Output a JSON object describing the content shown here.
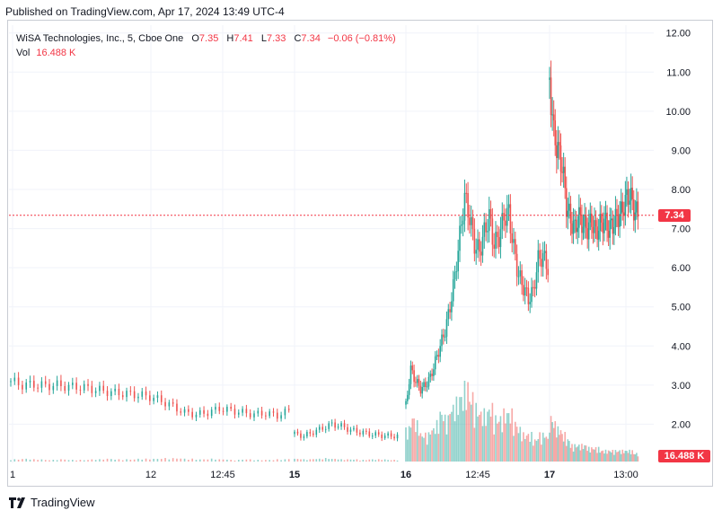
{
  "published": "Published on TradingView.com, Apr 17, 2024 13:49 UTC-4",
  "legend": {
    "symbol": "WiSA Technologies, Inc., 5, Cboe One",
    "open_label": "O",
    "open": "7.35",
    "high_label": "H",
    "high": "7.41",
    "low_label": "L",
    "low": "7.33",
    "close_label": "C",
    "close": "7.34",
    "change": "−0.06 (−0.81%)",
    "vol_label": "Vol",
    "vol": "16.488 K"
  },
  "last_price_label": "7.34",
  "last_volume_label": "16.488 K",
  "footer": {
    "brand": "TradingView"
  },
  "colors": {
    "up": "#26a69a",
    "down": "#ef5350",
    "price_line": "#f23645",
    "grid": "#f0f3fa",
    "axis_text": "#131722"
  },
  "chart_data": {
    "type": "candlestick",
    "y_ticks": [
      "2.00",
      "3.00",
      "4.00",
      "5.00",
      "6.00",
      "7.00",
      "8.00",
      "9.00",
      "10.00",
      "11.00",
      "12.00"
    ],
    "x_ticks": [
      {
        "label": "1",
        "bold": false
      },
      {
        "label": "12",
        "bold": false
      },
      {
        "label": "12:45",
        "bold": false
      },
      {
        "label": "15",
        "bold": true
      },
      {
        "label": "16",
        "bold": true
      },
      {
        "label": "12:45",
        "bold": false
      },
      {
        "label": "17",
        "bold": true
      },
      {
        "label": "13:00",
        "bold": false
      }
    ],
    "ylim": [
      1.0,
      12.2
    ],
    "last_price": 7.34,
    "grid": true,
    "segments": [
      {
        "session": "Apr 12",
        "path": [
          [
            3.1,
            0.4
          ],
          [
            3.0,
            0.5
          ],
          [
            3.02,
            0.4
          ],
          [
            2.98,
            0.3
          ],
          [
            3.0,
            0.4
          ],
          [
            2.96,
            0.3
          ],
          [
            2.95,
            0.3
          ],
          [
            2.9,
            0.4
          ],
          [
            2.85,
            0.5
          ],
          [
            2.8,
            0.4
          ],
          [
            2.78,
            0.4
          ],
          [
            2.75,
            0.5
          ],
          [
            2.7,
            0.5
          ],
          [
            2.6,
            0.6
          ],
          [
            2.45,
            0.6
          ],
          [
            2.3,
            0.5
          ],
          [
            2.25,
            0.4
          ],
          [
            2.3,
            0.5
          ],
          [
            2.4,
            0.4
          ],
          [
            2.35,
            0.3
          ],
          [
            2.3,
            0.4
          ],
          [
            2.25,
            0.3
          ],
          [
            2.28,
            0.3
          ],
          [
            2.22,
            0.4
          ],
          [
            2.35,
            0.5
          ]
        ]
      },
      {
        "session": "Apr 15",
        "path": [
          [
            1.75,
            0.5
          ],
          [
            1.7,
            0.4
          ],
          [
            1.8,
            0.5
          ],
          [
            1.9,
            0.6
          ],
          [
            2.0,
            0.5
          ],
          [
            1.95,
            0.4
          ],
          [
            1.85,
            0.4
          ],
          [
            1.8,
            0.3
          ],
          [
            1.75,
            0.4
          ],
          [
            1.72,
            0.4
          ],
          [
            1.7,
            0.3
          ],
          [
            1.7,
            0.3
          ]
        ]
      },
      {
        "session": "Apr 16",
        "path": [
          [
            2.5,
            6
          ],
          [
            3.4,
            8
          ],
          [
            3.1,
            7
          ],
          [
            2.9,
            5
          ],
          [
            3.0,
            5
          ],
          [
            3.2,
            6
          ],
          [
            3.6,
            7
          ],
          [
            4.0,
            9
          ],
          [
            4.4,
            8
          ],
          [
            5.0,
            10
          ],
          [
            5.8,
            11
          ],
          [
            6.8,
            12
          ],
          [
            7.8,
            14
          ],
          [
            7.3,
            12
          ],
          [
            6.6,
            10
          ],
          [
            6.4,
            9
          ],
          [
            6.9,
            9
          ],
          [
            7.3,
            10
          ],
          [
            6.6,
            8
          ],
          [
            6.8,
            8
          ],
          [
            7.3,
            9
          ],
          [
            7.4,
            9
          ],
          [
            6.5,
            7
          ],
          [
            5.8,
            6
          ],
          [
            5.5,
            5
          ],
          [
            5.2,
            5
          ],
          [
            5.4,
            4
          ],
          [
            6.2,
            5
          ],
          [
            6.3,
            5
          ],
          [
            6.0,
            4
          ]
        ]
      },
      {
        "session": "Apr 17",
        "path": [
          [
            10.8,
            8
          ],
          [
            9.4,
            7
          ],
          [
            9.0,
            6
          ],
          [
            8.6,
            5
          ],
          [
            7.6,
            4
          ],
          [
            7.2,
            3
          ],
          [
            7.0,
            3
          ],
          [
            7.3,
            3
          ],
          [
            7.1,
            3
          ],
          [
            7.0,
            2.5
          ],
          [
            7.2,
            2.5
          ],
          [
            6.9,
            2.5
          ],
          [
            7.1,
            2
          ],
          [
            7.2,
            2
          ],
          [
            7.0,
            2
          ],
          [
            7.1,
            2
          ],
          [
            7.3,
            2
          ],
          [
            7.4,
            2
          ],
          [
            7.7,
            2
          ],
          [
            7.9,
            2
          ],
          [
            7.5,
            1.5
          ],
          [
            7.34,
            1.5
          ]
        ]
      }
    ]
  }
}
